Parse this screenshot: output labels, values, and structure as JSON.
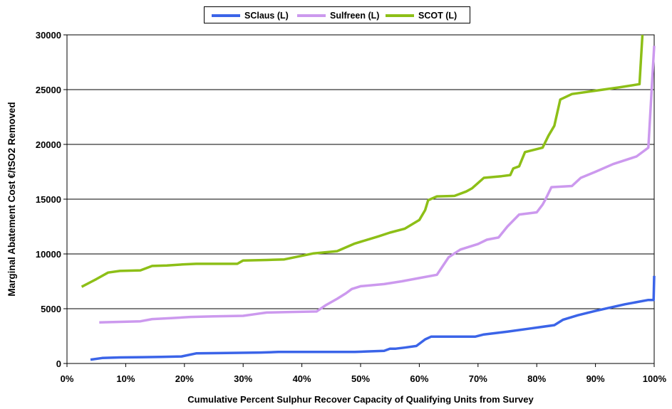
{
  "chart_data": {
    "type": "line",
    "title": "",
    "xlabel": "Cumulative Percent Sulphur Recover Capacity of  Qualifying Units from Survey",
    "ylabel": "Marginal Abatement Cost €/tSO2 Removed",
    "xlim": [
      0,
      100
    ],
    "ylim": [
      0,
      30000
    ],
    "x_ticks": [
      0,
      10,
      20,
      30,
      40,
      50,
      60,
      70,
      80,
      90,
      100
    ],
    "x_tick_labels": [
      "0%",
      "10%",
      "20%",
      "30%",
      "40%",
      "50%",
      "60%",
      "70%",
      "80%",
      "90%",
      "100%"
    ],
    "y_ticks": [
      0,
      5000,
      10000,
      15000,
      20000,
      25000,
      30000
    ],
    "y_tick_labels": [
      "0",
      "5000",
      "10000",
      "15000",
      "20000",
      "25000",
      "30000"
    ],
    "grid": "horizontal",
    "legend_position": "top-center",
    "series": [
      {
        "name": "SClaus (L)",
        "color": "#3b64e8",
        "points": [
          [
            4,
            350
          ],
          [
            6,
            500
          ],
          [
            9,
            550
          ],
          [
            13,
            580
          ],
          [
            16,
            600
          ],
          [
            19.5,
            640
          ],
          [
            22,
            920
          ],
          [
            26,
            950
          ],
          [
            33,
            1000
          ],
          [
            36,
            1050
          ],
          [
            40,
            1050
          ],
          [
            49,
            1050
          ],
          [
            51,
            1100
          ],
          [
            54,
            1150
          ],
          [
            55,
            1350
          ],
          [
            56,
            1350
          ],
          [
            57.5,
            1450
          ],
          [
            59.5,
            1600
          ],
          [
            61,
            2200
          ],
          [
            62,
            2450
          ],
          [
            64,
            2450
          ],
          [
            68,
            2450
          ],
          [
            69.5,
            2450
          ],
          [
            71,
            2650
          ],
          [
            75,
            2900
          ],
          [
            79,
            3200
          ],
          [
            83,
            3500
          ],
          [
            84.5,
            4000
          ],
          [
            87,
            4400
          ],
          [
            90,
            4800
          ],
          [
            95,
            5400
          ],
          [
            99,
            5800
          ],
          [
            99.9,
            5800
          ],
          [
            100,
            8000
          ]
        ]
      },
      {
        "name": "Sulfreen (L)",
        "color": "#cc99ee",
        "points": [
          [
            5.5,
            3750
          ],
          [
            9,
            3800
          ],
          [
            12.5,
            3850
          ],
          [
            14.5,
            4050
          ],
          [
            18,
            4150
          ],
          [
            21,
            4250
          ],
          [
            25,
            4300
          ],
          [
            30,
            4350
          ],
          [
            32,
            4500
          ],
          [
            34,
            4650
          ],
          [
            38,
            4700
          ],
          [
            42.5,
            4750
          ],
          [
            44,
            5300
          ],
          [
            46,
            5900
          ],
          [
            47.5,
            6400
          ],
          [
            48.5,
            6800
          ],
          [
            50,
            7050
          ],
          [
            54,
            7250
          ],
          [
            57,
            7500
          ],
          [
            60,
            7800
          ],
          [
            63,
            8100
          ],
          [
            64,
            8900
          ],
          [
            65,
            9700
          ],
          [
            67,
            10400
          ],
          [
            70,
            10900
          ],
          [
            71.5,
            11300
          ],
          [
            72.5,
            11400
          ],
          [
            73.5,
            11500
          ],
          [
            75,
            12500
          ],
          [
            77,
            13600
          ],
          [
            80,
            13800
          ],
          [
            81,
            14500
          ],
          [
            81.5,
            15000
          ],
          [
            82.5,
            16100
          ],
          [
            86,
            16200
          ],
          [
            87.5,
            16950
          ],
          [
            90,
            17500
          ],
          [
            93,
            18200
          ],
          [
            97,
            18900
          ],
          [
            99,
            19700
          ],
          [
            100,
            29000
          ]
        ]
      },
      {
        "name": "SCOT (L)",
        "color": "#8dbf17",
        "points": [
          [
            2.5,
            7000
          ],
          [
            5,
            7700
          ],
          [
            7,
            8300
          ],
          [
            9,
            8450
          ],
          [
            12.5,
            8500
          ],
          [
            14.5,
            8900
          ],
          [
            17,
            8950
          ],
          [
            20,
            9050
          ],
          [
            22,
            9100
          ],
          [
            25,
            9100
          ],
          [
            29,
            9100
          ],
          [
            30,
            9400
          ],
          [
            34,
            9450
          ],
          [
            37,
            9500
          ],
          [
            42,
            10050
          ],
          [
            46,
            10250
          ],
          [
            49,
            10950
          ],
          [
            53,
            11600
          ],
          [
            55,
            11950
          ],
          [
            57.5,
            12300
          ],
          [
            60,
            13100
          ],
          [
            61,
            14000
          ],
          [
            61.5,
            14900
          ],
          [
            63,
            15250
          ],
          [
            66,
            15300
          ],
          [
            68,
            15700
          ],
          [
            69,
            16000
          ],
          [
            71,
            16950
          ],
          [
            74,
            17100
          ],
          [
            75.5,
            17200
          ],
          [
            76,
            17800
          ],
          [
            77,
            18000
          ],
          [
            78,
            19300
          ],
          [
            81,
            19700
          ],
          [
            82,
            20800
          ],
          [
            83,
            21700
          ],
          [
            84,
            24100
          ],
          [
            86,
            24600
          ],
          [
            90,
            24900
          ],
          [
            94,
            25200
          ],
          [
            97.5,
            25500
          ],
          [
            98,
            30000
          ]
        ]
      }
    ]
  }
}
